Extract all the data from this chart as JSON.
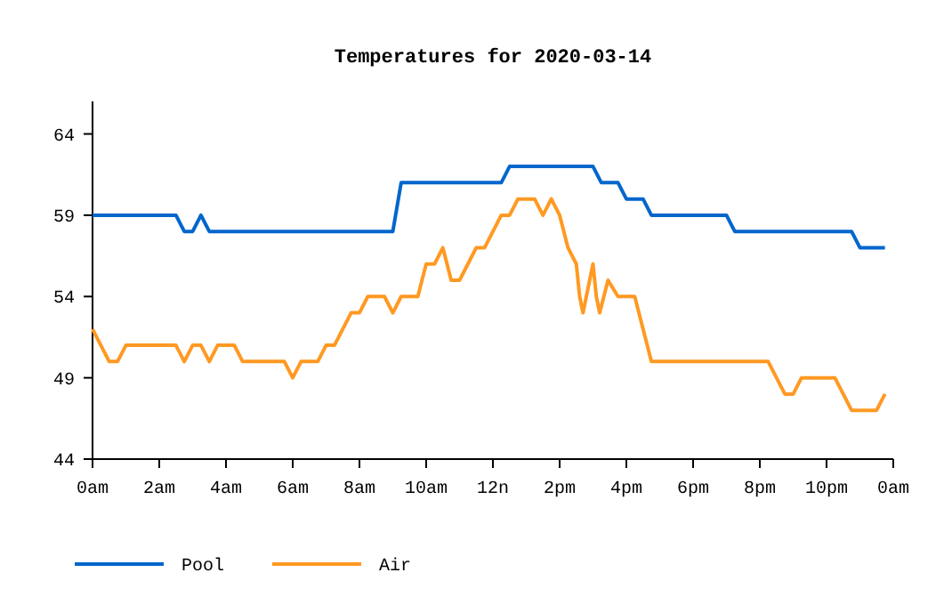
{
  "chart_data": {
    "type": "line",
    "title": "Temperatures for 2020-03-14",
    "xlim": [
      "2020-03-14T00:00",
      "2020-03-15T00:00"
    ],
    "xticks": [
      {
        "value": "2020-03-14T00:00",
        "label": "0am"
      },
      {
        "value": "2020-03-14T02:00",
        "label": "2am"
      },
      {
        "value": "2020-03-14T04:00",
        "label": "4am"
      },
      {
        "value": "2020-03-14T06:00",
        "label": "6am"
      },
      {
        "value": "2020-03-14T08:00",
        "label": "8am"
      },
      {
        "value": "2020-03-14T10:00",
        "label": "10am"
      },
      {
        "value": "2020-03-14T12:00",
        "label": "12n"
      },
      {
        "value": "2020-03-14T14:00",
        "label": "2pm"
      },
      {
        "value": "2020-03-14T16:00",
        "label": "4pm"
      },
      {
        "value": "2020-03-14T18:00",
        "label": "6pm"
      },
      {
        "value": "2020-03-14T20:00",
        "label": "8pm"
      },
      {
        "value": "2020-03-14T22:00",
        "label": "10pm"
      },
      {
        "value": "2020-03-15T00:00",
        "label": "0am"
      }
    ],
    "ylim": [
      44,
      66
    ],
    "yticks": [
      44,
      49,
      54,
      59,
      64
    ],
    "legend": "bottom",
    "grid": false,
    "marker": "none",
    "line_style": "solid",
    "series": [
      {
        "name": "Pool",
        "color": "#0066cc",
        "x": [
          "2020-03-14T00:00",
          "2020-03-14T02:30",
          "2020-03-14T02:45",
          "2020-03-14T03:00",
          "2020-03-14T03:15",
          "2020-03-14T03:30",
          "2020-03-14T09:00",
          "2020-03-14T09:15",
          "2020-03-14T12:15",
          "2020-03-14T12:30",
          "2020-03-14T15:00",
          "2020-03-14T15:15",
          "2020-03-14T15:45",
          "2020-03-14T16:00",
          "2020-03-14T16:30",
          "2020-03-14T16:45",
          "2020-03-14T19:00",
          "2020-03-14T19:15",
          "2020-03-14T22:45",
          "2020-03-14T23:00",
          "2020-03-14T23:45"
        ],
        "values": [
          59,
          59,
          58,
          58,
          59,
          58,
          58,
          61,
          61,
          62,
          62,
          61,
          61,
          60,
          60,
          59,
          59,
          58,
          58,
          57,
          57
        ]
      },
      {
        "name": "Air",
        "color": "#ff9922",
        "x": [
          "2020-03-14T00:00",
          "2020-03-14T00:30",
          "2020-03-14T00:45",
          "2020-03-14T01:00",
          "2020-03-14T02:30",
          "2020-03-14T02:45",
          "2020-03-14T03:00",
          "2020-03-14T03:15",
          "2020-03-14T03:30",
          "2020-03-14T03:45",
          "2020-03-14T04:15",
          "2020-03-14T04:30",
          "2020-03-14T05:45",
          "2020-03-14T06:00",
          "2020-03-14T06:15",
          "2020-03-14T06:45",
          "2020-03-14T07:00",
          "2020-03-14T07:15",
          "2020-03-14T07:30",
          "2020-03-14T07:45",
          "2020-03-14T08:00",
          "2020-03-14T08:15",
          "2020-03-14T08:45",
          "2020-03-14T09:00",
          "2020-03-14T09:15",
          "2020-03-14T09:45",
          "2020-03-14T10:00",
          "2020-03-14T10:15",
          "2020-03-14T10:30",
          "2020-03-14T10:45",
          "2020-03-14T11:00",
          "2020-03-14T11:15",
          "2020-03-14T11:30",
          "2020-03-14T11:45",
          "2020-03-14T12:00",
          "2020-03-14T12:15",
          "2020-03-14T12:30",
          "2020-03-14T12:45",
          "2020-03-14T13:15",
          "2020-03-14T13:30",
          "2020-03-14T13:45",
          "2020-03-14T14:00",
          "2020-03-14T14:15",
          "2020-03-14T14:30",
          "2020-03-14T14:36",
          "2020-03-14T14:42",
          "2020-03-14T14:48",
          "2020-03-14T15:00",
          "2020-03-14T15:06",
          "2020-03-14T15:12",
          "2020-03-14T15:27",
          "2020-03-14T15:45",
          "2020-03-14T16:15",
          "2020-03-14T16:30",
          "2020-03-14T16:45",
          "2020-03-14T20:15",
          "2020-03-14T20:45",
          "2020-03-14T21:00",
          "2020-03-14T21:15",
          "2020-03-14T22:15",
          "2020-03-14T22:45",
          "2020-03-14T23:30",
          "2020-03-14T23:45"
        ],
        "values": [
          52,
          50,
          50,
          51,
          51,
          50,
          51,
          51,
          50,
          51,
          51,
          50,
          50,
          49,
          50,
          50,
          51,
          51,
          52,
          53,
          53,
          54,
          54,
          53,
          54,
          54,
          56,
          56,
          57,
          55,
          55,
          56,
          57,
          57,
          58,
          59,
          59,
          60,
          60,
          59,
          60,
          59,
          57,
          56,
          54,
          53,
          54,
          56,
          54,
          53,
          55,
          54,
          54,
          52,
          50,
          50,
          48,
          48,
          49,
          49,
          47,
          47,
          48
        ]
      }
    ]
  }
}
